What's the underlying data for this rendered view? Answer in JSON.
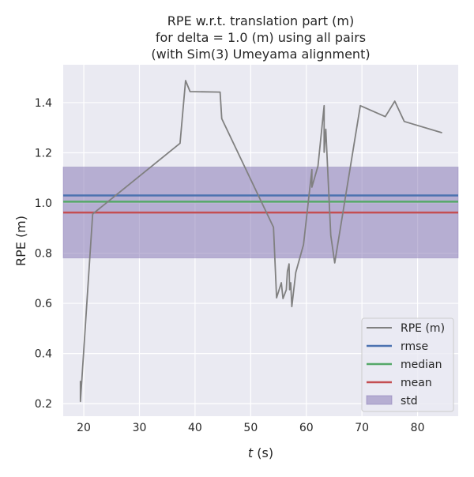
{
  "chart_data": {
    "type": "line",
    "title": [
      "RPE w.r.t. translation part (m)",
      "for delta = 1.0 (m) using all pairs",
      "(with Sim(3) Umeyama alignment)"
    ],
    "xlabel_italic": "t",
    "xlabel_rest": " (s)",
    "ylabel": "RPE (m)",
    "xlim": [
      16.3,
      87.3
    ],
    "ylim": [
      0.15,
      1.551
    ],
    "xticks": [
      20,
      30,
      40,
      50,
      60,
      70,
      80
    ],
    "yticks": [
      0.2,
      0.4,
      0.6,
      0.8,
      1.0,
      1.2,
      1.4
    ],
    "xtick_labels": [
      "20",
      "30",
      "40",
      "50",
      "60",
      "70",
      "80"
    ],
    "ytick_labels": [
      "0.2",
      "0.4",
      "0.6",
      "0.8",
      "1.0",
      "1.2",
      "1.4"
    ],
    "grid": true,
    "legend_placement": "lower-right",
    "series": [
      {
        "name": "RPE (m)",
        "color": "#808080",
        "x": [
          19.39,
          19.39,
          21.6,
          37.3,
          38.3,
          39.1,
          44.5,
          44.8,
          54.1,
          54.66,
          55.5,
          55.8,
          56.4,
          56.6,
          56.9,
          57.0,
          57.2,
          57.4,
          58.1,
          59.5,
          61.0,
          61.0,
          62.1,
          63.2,
          63.2,
          63.5,
          64.4,
          65.1,
          69.7,
          74.2,
          75.9,
          77.6,
          84.4
        ],
        "y": [
          0.291,
          0.209,
          0.956,
          1.238,
          1.488,
          1.444,
          1.442,
          1.336,
          0.903,
          0.622,
          0.682,
          0.619,
          0.654,
          0.727,
          0.757,
          0.654,
          0.682,
          0.587,
          0.723,
          0.834,
          1.133,
          1.063,
          1.147,
          1.388,
          1.202,
          1.294,
          0.871,
          0.761,
          1.388,
          1.344,
          1.406,
          1.325,
          1.28
        ]
      }
    ],
    "stats": {
      "rmse": {
        "name": "rmse",
        "value": 1.03,
        "color": "#4c72b0"
      },
      "median": {
        "name": "median",
        "value": 1.005,
        "color": "#55a868"
      },
      "mean": {
        "name": "mean",
        "value": 0.962,
        "color": "#c44e52"
      },
      "std": {
        "name": "std",
        "low": 0.781,
        "high": 1.143,
        "color": "#8172b2"
      }
    }
  }
}
